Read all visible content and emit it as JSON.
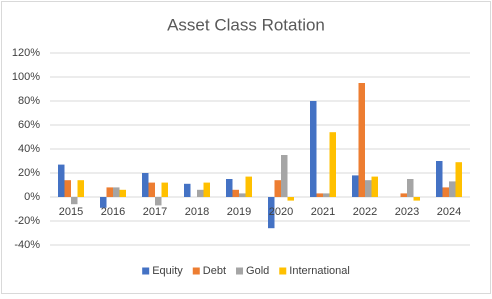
{
  "chart_data": {
    "type": "bar",
    "title": "Asset Class Rotation",
    "categories": [
      "2015",
      "2016",
      "2017",
      "2018",
      "2019",
      "2020",
      "2021",
      "2022",
      "2023",
      "2024"
    ],
    "series": [
      {
        "name": "Equity",
        "color": "#4472c4",
        "values": [
          27,
          -9,
          20,
          11,
          15,
          -26,
          80,
          18,
          0,
          30
        ]
      },
      {
        "name": "Debt",
        "color": "#ed7d31",
        "values": [
          14,
          8,
          12,
          0,
          6,
          14,
          3,
          95,
          3,
          8
        ]
      },
      {
        "name": "Gold",
        "color": "#a5a5a5",
        "values": [
          -6,
          8,
          -7,
          6,
          3,
          35,
          3,
          14,
          15,
          13
        ]
      },
      {
        "name": "International",
        "color": "#ffc000",
        "values": [
          14,
          6,
          12,
          12,
          17,
          -3,
          54,
          17,
          -3,
          29
        ]
      }
    ],
    "ylim": [
      -40,
      120
    ],
    "yticks": [
      {
        "value": -40,
        "label": "-40%"
      },
      {
        "value": -20,
        "label": "-20%"
      },
      {
        "value": 0,
        "label": "0%"
      },
      {
        "value": 20,
        "label": "20%"
      },
      {
        "value": 40,
        "label": "40%"
      },
      {
        "value": 60,
        "label": "60%"
      },
      {
        "value": 80,
        "label": "80%"
      },
      {
        "value": 100,
        "label": "100%"
      },
      {
        "value": 120,
        "label": "120%"
      }
    ],
    "grid": true,
    "legend": "bottom"
  }
}
